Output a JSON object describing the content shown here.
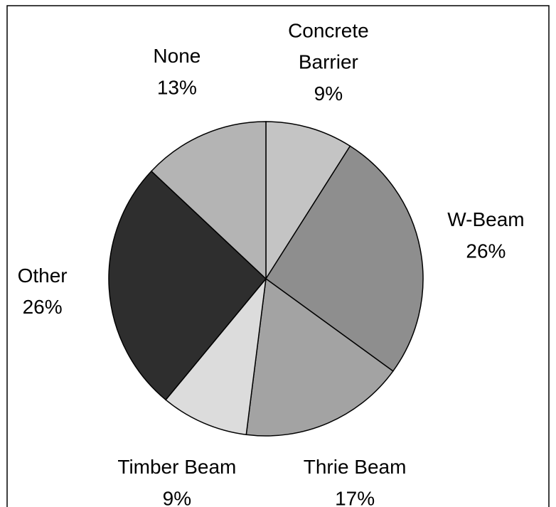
{
  "chart_data": {
    "type": "pie",
    "categories": [
      "Concrete\nBarrier",
      "W-Beam",
      "Thrie Beam",
      "Timber Beam",
      "Other",
      "None"
    ],
    "values": [
      9,
      26,
      17,
      9,
      26,
      13
    ],
    "value_labels": [
      "9%",
      "26%",
      "17%",
      "9%",
      "26%",
      "13%"
    ],
    "colors": [
      "#c4c4c4",
      "#8e8e8e",
      "#a3a3a3",
      "#dcdcdc",
      "#2e2e2e",
      "#b4b4b4"
    ]
  }
}
